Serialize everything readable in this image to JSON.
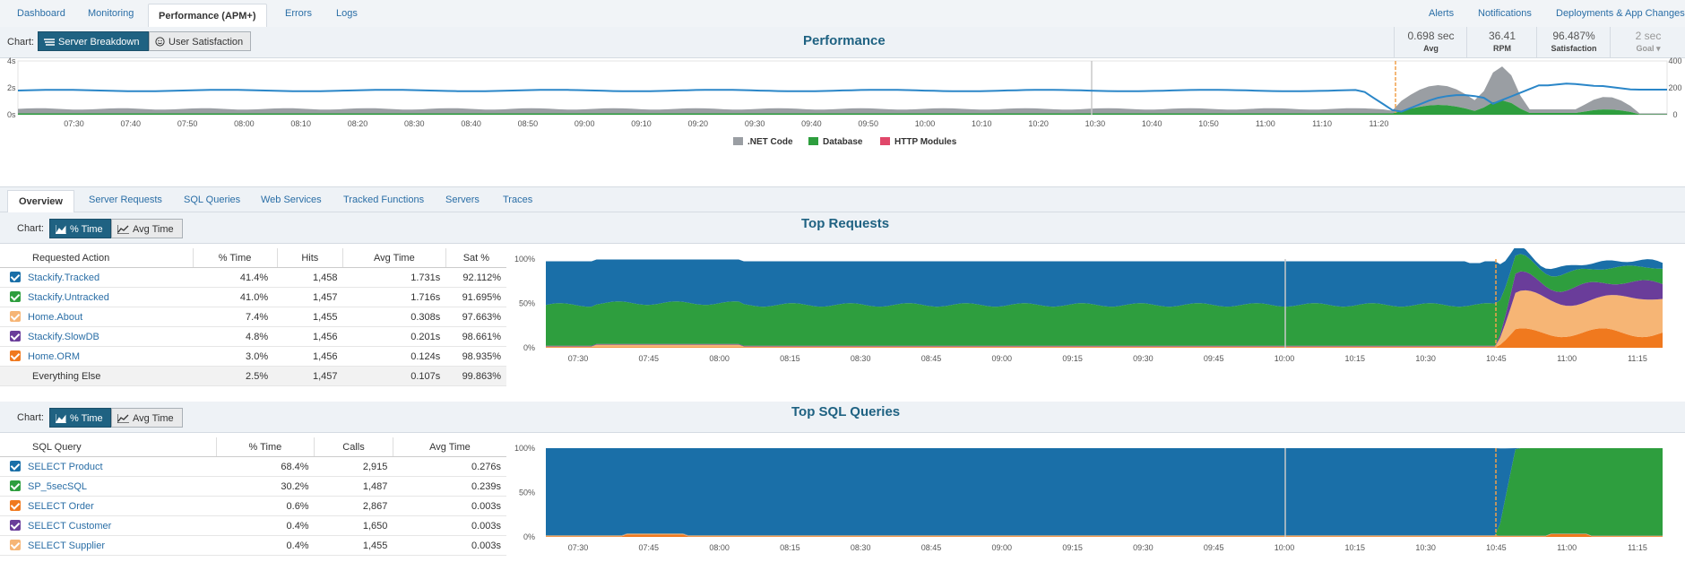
{
  "nav": {
    "tabs": [
      "Dashboard",
      "Monitoring",
      "Performance (APM+)",
      "Errors",
      "Logs"
    ],
    "right": [
      "Alerts",
      "Notifications",
      "Deployments & App Changes"
    ]
  },
  "perf": {
    "chart_label": "Chart:",
    "btn_breakdown": "Server Breakdown",
    "btn_satisfaction": "User Satisfaction",
    "title": "Performance",
    "metrics": [
      {
        "value": "0.698 sec",
        "label": "Avg"
      },
      {
        "value": "36.41",
        "label": "RPM"
      },
      {
        "value": "96.487%",
        "label": "Satisfaction"
      },
      {
        "value": "2 sec",
        "label": "Goal"
      }
    ]
  },
  "subtabs": [
    "Overview",
    "Server Requests",
    "SQL Queries",
    "Web Services",
    "Tracked Functions",
    "Servers",
    "Traces"
  ],
  "requests": {
    "chart_label": "Chart:",
    "btn_time": "% Time",
    "btn_avg": "Avg Time",
    "title": "Top Requests",
    "headers": [
      "Requested Action",
      "% Time",
      "Hits",
      "Avg Time",
      "Sat %"
    ],
    "rows": [
      {
        "name": "Stackify.Tracked",
        "pct": "41.4%",
        "hits": "1,458",
        "avg": "1.731s",
        "sat": "92.112%",
        "color": "#1a6fa8"
      },
      {
        "name": "Stackify.Untracked",
        "pct": "41.0%",
        "hits": "1,457",
        "avg": "1.716s",
        "sat": "91.695%",
        "color": "#2e9e3e"
      },
      {
        "name": "Home.About",
        "pct": "7.4%",
        "hits": "1,455",
        "avg": "0.308s",
        "sat": "97.663%",
        "color": "#f6b575"
      },
      {
        "name": "Stackify.SlowDB",
        "pct": "4.8%",
        "hits": "1,456",
        "avg": "0.201s",
        "sat": "98.661%",
        "color": "#6a3d9a"
      },
      {
        "name": "Home.ORM",
        "pct": "3.0%",
        "hits": "1,456",
        "avg": "0.124s",
        "sat": "98.935%",
        "color": "#f0791e"
      },
      {
        "name": "Everything Else",
        "pct": "2.5%",
        "hits": "1,457",
        "avg": "0.107s",
        "sat": "99.863%",
        "color": ""
      }
    ]
  },
  "sql": {
    "chart_label": "Chart:",
    "btn_time": "% Time",
    "btn_avg": "Avg Time",
    "title": "Top SQL Queries",
    "headers": [
      "SQL Query",
      "% Time",
      "Calls",
      "Avg Time"
    ],
    "rows": [
      {
        "name": "SELECT Product",
        "pct": "68.4%",
        "calls": "2,915",
        "avg": "0.276s",
        "color": "#1a6fa8"
      },
      {
        "name": "SP_5secSQL",
        "pct": "30.2%",
        "calls": "1,487",
        "avg": "0.239s",
        "color": "#2e9e3e"
      },
      {
        "name": "SELECT Order",
        "pct": "0.6%",
        "calls": "2,867",
        "avg": "0.003s",
        "color": "#f0791e"
      },
      {
        "name": "SELECT Customer",
        "pct": "0.4%",
        "calls": "1,650",
        "avg": "0.003s",
        "color": "#6a3d9a"
      },
      {
        "name": "SELECT Supplier",
        "pct": "0.4%",
        "calls": "1,455",
        "avg": "0.003s",
        "color": "#f6b575"
      }
    ]
  },
  "chart_data": [
    {
      "type": "area",
      "x": [
        "07:30",
        "07:40",
        "07:50",
        "08:00",
        "08:10",
        "08:20",
        "08:30",
        "08:40",
        "08:50",
        "09:00",
        "09:10",
        "09:20",
        "09:30",
        "09:40",
        "09:50",
        "10:00",
        "10:10",
        "10:20",
        "10:30",
        "10:40",
        "10:50",
        "11:00",
        "11:10",
        "11:20"
      ],
      "y_left_ticks": [
        "4s",
        "2s",
        "0s"
      ],
      "y_right_ticks": [
        "400",
        "200",
        "0"
      ],
      "legend": [
        {
          "name": ".NET Code",
          "color": "#9a9ea3"
        },
        {
          "name": "Database",
          "color": "#2e9e3e"
        },
        {
          "name": "HTTP Modules",
          "color": "#e0476a"
        }
      ]
    },
    {
      "type": "area",
      "x": [
        "07:30",
        "07:45",
        "08:00",
        "08:15",
        "08:30",
        "08:45",
        "09:00",
        "09:15",
        "09:30",
        "09:45",
        "10:00",
        "10:15",
        "10:30",
        "10:45",
        "11:00",
        "11:15"
      ],
      "y_ticks": [
        "100%",
        "50%",
        "0%"
      ]
    },
    {
      "type": "area",
      "x": [
        "07:30",
        "07:45",
        "08:00",
        "08:15",
        "08:30",
        "08:45",
        "09:00",
        "09:15",
        "09:30",
        "09:45",
        "10:00",
        "10:15",
        "10:30",
        "10:45",
        "11:00",
        "11:15"
      ],
      "y_ticks": [
        "100%",
        "50%",
        "0%"
      ]
    }
  ]
}
